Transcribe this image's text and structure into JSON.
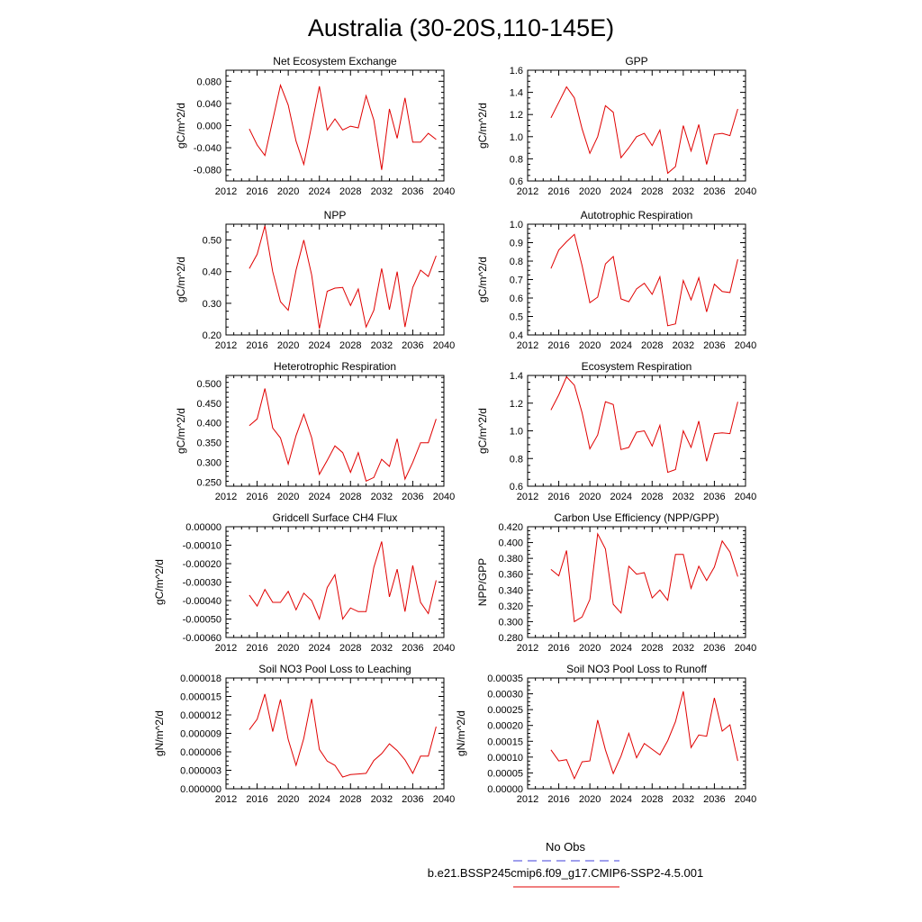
{
  "title": "Australia (30-20S,110-145E)",
  "legend": {
    "obs_label": "No Obs",
    "model_label": "b.e21.BSSP245cmip6.f09_g17.CMIP6-SSP2-4.5.001",
    "obs_color": "#3f3fd8",
    "model_color": "#e00000"
  },
  "chart_data": [
    {
      "type": "line",
      "title": "Net Ecosystem Exchange",
      "ylabel": "gC/m^2/d",
      "xlim": [
        2012,
        2040
      ],
      "ylim": [
        -0.1,
        0.1
      ],
      "xticks": [
        2012,
        2016,
        2020,
        2024,
        2028,
        2032,
        2036,
        2040
      ],
      "yticks": [
        -0.08,
        -0.04,
        0.0,
        0.04,
        0.08
      ],
      "ytick_labels": [
        "-0.080",
        "-0.040",
        "0.000",
        "0.040",
        "0.080"
      ],
      "x": [
        2015,
        2016,
        2017,
        2018,
        2019,
        2020,
        2021,
        2022,
        2023,
        2024,
        2025,
        2026,
        2027,
        2028,
        2029,
        2030,
        2031,
        2032,
        2033,
        2034,
        2035,
        2036,
        2037,
        2038,
        2039
      ],
      "values": [
        -0.006,
        -0.035,
        -0.054,
        0.01,
        0.073,
        0.037,
        -0.028,
        -0.07,
        0.0,
        0.071,
        -0.008,
        0.012,
        -0.008,
        -0.001,
        -0.004,
        0.054,
        0.01,
        -0.08,
        0.03,
        -0.023,
        0.05,
        -0.03,
        -0.03,
        -0.014,
        -0.025
      ]
    },
    {
      "type": "line",
      "title": "GPP",
      "ylabel": "gC/m^2/d",
      "xlim": [
        2012,
        2040
      ],
      "ylim": [
        0.6,
        1.6
      ],
      "xticks": [
        2012,
        2016,
        2020,
        2024,
        2028,
        2032,
        2036,
        2040
      ],
      "yticks": [
        0.6,
        0.8,
        1.0,
        1.2,
        1.4,
        1.6
      ],
      "ytick_labels": [
        "0.6",
        "0.8",
        "1.0",
        "1.2",
        "1.4",
        "1.6"
      ],
      "x": [
        2015,
        2016,
        2017,
        2018,
        2019,
        2020,
        2021,
        2022,
        2023,
        2024,
        2025,
        2026,
        2027,
        2028,
        2029,
        2030,
        2031,
        2032,
        2033,
        2034,
        2035,
        2036,
        2037,
        2038,
        2039
      ],
      "values": [
        1.17,
        1.31,
        1.45,
        1.35,
        1.07,
        0.85,
        1.0,
        1.28,
        1.22,
        0.81,
        0.9,
        1.0,
        1.03,
        0.92,
        1.06,
        0.67,
        0.73,
        1.1,
        0.87,
        1.11,
        0.75,
        1.02,
        1.03,
        1.01,
        1.25
      ]
    },
    {
      "type": "line",
      "title": "NPP",
      "ylabel": "gC/m^2/d",
      "xlim": [
        2012,
        2040
      ],
      "ylim": [
        0.2,
        0.55
      ],
      "xticks": [
        2012,
        2016,
        2020,
        2024,
        2028,
        2032,
        2036,
        2040
      ],
      "yticks": [
        0.2,
        0.3,
        0.4,
        0.5
      ],
      "ytick_labels": [
        "0.20",
        "0.30",
        "0.40",
        "0.50"
      ],
      "x": [
        2015,
        2016,
        2017,
        2018,
        2019,
        2020,
        2021,
        2022,
        2023,
        2024,
        2025,
        2026,
        2027,
        2028,
        2029,
        2030,
        2031,
        2032,
        2033,
        2034,
        2035,
        2036,
        2037,
        2038,
        2039
      ],
      "values": [
        0.41,
        0.455,
        0.545,
        0.4,
        0.305,
        0.278,
        0.405,
        0.5,
        0.39,
        0.22,
        0.338,
        0.348,
        0.35,
        0.293,
        0.345,
        0.225,
        0.278,
        0.41,
        0.28,
        0.4,
        0.225,
        0.35,
        0.405,
        0.385,
        0.45
      ]
    },
    {
      "type": "line",
      "title": "Autotrophic Respiration",
      "ylabel": "gC/m^2/d",
      "xlim": [
        2012,
        2040
      ],
      "ylim": [
        0.4,
        1.0
      ],
      "xticks": [
        2012,
        2016,
        2020,
        2024,
        2028,
        2032,
        2036,
        2040
      ],
      "yticks": [
        0.4,
        0.5,
        0.6,
        0.7,
        0.8,
        0.9,
        1.0
      ],
      "ytick_labels": [
        "0.4",
        "0.5",
        "0.6",
        "0.7",
        "0.8",
        "0.9",
        "1.0"
      ],
      "x": [
        2015,
        2016,
        2017,
        2018,
        2019,
        2020,
        2021,
        2022,
        2023,
        2024,
        2025,
        2026,
        2027,
        2028,
        2029,
        2030,
        2031,
        2032,
        2033,
        2034,
        2035,
        2036,
        2037,
        2038,
        2039
      ],
      "values": [
        0.76,
        0.86,
        0.905,
        0.945,
        0.775,
        0.575,
        0.605,
        0.785,
        0.825,
        0.595,
        0.58,
        0.65,
        0.68,
        0.62,
        0.715,
        0.45,
        0.46,
        0.695,
        0.59,
        0.71,
        0.525,
        0.675,
        0.635,
        0.63,
        0.81
      ]
    },
    {
      "type": "line",
      "title": "Heterotrophic Respiration",
      "ylabel": "gC/m^2/d",
      "xlim": [
        2012,
        2040
      ],
      "ylim": [
        0.24,
        0.52
      ],
      "xticks": [
        2012,
        2016,
        2020,
        2024,
        2028,
        2032,
        2036,
        2040
      ],
      "yticks": [
        0.25,
        0.3,
        0.35,
        0.4,
        0.45,
        0.5
      ],
      "ytick_labels": [
        "0.250",
        "0.300",
        "0.350",
        "0.400",
        "0.450",
        "0.500"
      ],
      "x": [
        2015,
        2016,
        2017,
        2018,
        2019,
        2020,
        2021,
        2022,
        2023,
        2024,
        2025,
        2026,
        2027,
        2028,
        2029,
        2030,
        2031,
        2032,
        2033,
        2034,
        2035,
        2036,
        2037,
        2038,
        2039
      ],
      "values": [
        0.393,
        0.41,
        0.487,
        0.387,
        0.362,
        0.296,
        0.368,
        0.422,
        0.363,
        0.27,
        0.305,
        0.342,
        0.325,
        0.275,
        0.325,
        0.253,
        0.262,
        0.308,
        0.29,
        0.36,
        0.258,
        0.3,
        0.35,
        0.35,
        0.41
      ]
    },
    {
      "type": "line",
      "title": "Ecosystem Respiration",
      "ylabel": "gC/m^2/d",
      "xlim": [
        2012,
        2040
      ],
      "ylim": [
        0.6,
        1.4
      ],
      "xticks": [
        2012,
        2016,
        2020,
        2024,
        2028,
        2032,
        2036,
        2040
      ],
      "yticks": [
        0.6,
        0.8,
        1.0,
        1.2,
        1.4
      ],
      "ytick_labels": [
        "0.6",
        "0.8",
        "1.0",
        "1.2",
        "1.4"
      ],
      "x": [
        2015,
        2016,
        2017,
        2018,
        2019,
        2020,
        2021,
        2022,
        2023,
        2024,
        2025,
        2026,
        2027,
        2028,
        2029,
        2030,
        2031,
        2032,
        2033,
        2034,
        2035,
        2036,
        2037,
        2038,
        2039
      ],
      "values": [
        1.15,
        1.26,
        1.39,
        1.33,
        1.13,
        0.87,
        0.97,
        1.21,
        1.19,
        0.865,
        0.88,
        0.99,
        1.0,
        0.89,
        1.04,
        0.7,
        0.72,
        1.0,
        0.88,
        1.07,
        0.78,
        0.98,
        0.985,
        0.98,
        1.21
      ]
    },
    {
      "type": "line",
      "title": "Gridcell Surface CH4 Flux",
      "ylabel": "gC/m^2/d",
      "xlim": [
        2012,
        2040
      ],
      "ylim": [
        -0.0006,
        0.0
      ],
      "xticks": [
        2012,
        2016,
        2020,
        2024,
        2028,
        2032,
        2036,
        2040
      ],
      "yticks": [
        -0.0006,
        -0.0005,
        -0.0004,
        -0.0003,
        -0.0002,
        -0.0001,
        0.0
      ],
      "ytick_labels": [
        "-0.00060",
        "-0.00050",
        "-0.00040",
        "-0.00030",
        "-0.00020",
        "-0.00010",
        "0.00000"
      ],
      "x": [
        2015,
        2016,
        2017,
        2018,
        2019,
        2020,
        2021,
        2022,
        2023,
        2024,
        2025,
        2026,
        2027,
        2028,
        2029,
        2030,
        2031,
        2032,
        2033,
        2034,
        2035,
        2036,
        2037,
        2038,
        2039
      ],
      "values": [
        -0.00037,
        -0.00043,
        -0.00034,
        -0.00041,
        -0.00041,
        -0.00035,
        -0.00045,
        -0.00036,
        -0.0004,
        -0.0005,
        -0.00033,
        -0.00026,
        -0.0005,
        -0.00044,
        -0.00046,
        -0.00046,
        -0.00022,
        -8e-05,
        -0.00038,
        -0.00023,
        -0.00046,
        -0.00021,
        -0.00041,
        -0.00047,
        -0.00029
      ]
    },
    {
      "type": "line",
      "title": "Carbon Use Efficiency (NPP/GPP)",
      "ylabel": "NPP/GPP",
      "xlim": [
        2012,
        2040
      ],
      "ylim": [
        0.28,
        0.42
      ],
      "xticks": [
        2012,
        2016,
        2020,
        2024,
        2028,
        2032,
        2036,
        2040
      ],
      "yticks": [
        0.28,
        0.3,
        0.32,
        0.34,
        0.36,
        0.38,
        0.4,
        0.42
      ],
      "ytick_labels": [
        "0.280",
        "0.300",
        "0.320",
        "0.340",
        "0.360",
        "0.380",
        "0.400",
        "0.420"
      ],
      "x": [
        2015,
        2016,
        2017,
        2018,
        2019,
        2020,
        2021,
        2022,
        2023,
        2024,
        2025,
        2026,
        2027,
        2028,
        2029,
        2030,
        2031,
        2032,
        2033,
        2034,
        2035,
        2036,
        2037,
        2038,
        2039
      ],
      "values": [
        0.366,
        0.358,
        0.39,
        0.3,
        0.306,
        0.328,
        0.411,
        0.392,
        0.322,
        0.311,
        0.37,
        0.36,
        0.362,
        0.33,
        0.34,
        0.327,
        0.385,
        0.385,
        0.342,
        0.37,
        0.352,
        0.369,
        0.402,
        0.388,
        0.357
      ]
    },
    {
      "type": "line",
      "title": "Soil NO3 Pool Loss to Leaching",
      "ylabel": "gN/m^2/d",
      "xlim": [
        2012,
        2040
      ],
      "ylim": [
        0.0,
        1.8e-05
      ],
      "xticks": [
        2012,
        2016,
        2020,
        2024,
        2028,
        2032,
        2036,
        2040
      ],
      "yticks": [
        0.0,
        3e-06,
        6e-06,
        9e-06,
        1.2e-05,
        1.5e-05,
        1.8e-05
      ],
      "ytick_labels": [
        "0.000000",
        "0.000003",
        "0.000006",
        "0.000009",
        "0.000012",
        "0.000015",
        "0.000018"
      ],
      "x": [
        2015,
        2016,
        2017,
        2018,
        2019,
        2020,
        2021,
        2022,
        2023,
        2024,
        2025,
        2026,
        2027,
        2028,
        2029,
        2030,
        2031,
        2032,
        2033,
        2034,
        2035,
        2036,
        2037,
        2038,
        2039
      ],
      "values": [
        9.6e-06,
        1.13e-05,
        1.54e-05,
        9.3e-06,
        1.45e-05,
        8e-06,
        3.8e-06,
        8.2e-06,
        1.46e-05,
        6.4e-06,
        4.5e-06,
        3.8e-06,
        1.9e-06,
        2.3e-06,
        2.4e-06,
        2.5e-06,
        4.6e-06,
        5.7e-06,
        7.3e-06,
        6.2e-06,
        4.7e-06,
        2.5e-06,
        5.3e-06,
        5.3e-06,
        1.01e-05
      ]
    },
    {
      "type": "line",
      "title": "Soil NO3 Pool Loss to Runoff",
      "ylabel": "gN/m^2/d",
      "xlim": [
        2012,
        2040
      ],
      "ylim": [
        0.0,
        0.00035
      ],
      "xticks": [
        2012,
        2016,
        2020,
        2024,
        2028,
        2032,
        2036,
        2040
      ],
      "yticks": [
        0.0,
        5e-05,
        0.0001,
        0.00015,
        0.0002,
        0.00025,
        0.0003,
        0.00035
      ],
      "ytick_labels": [
        "0.00000",
        "0.00005",
        "0.00010",
        "0.00015",
        "0.00020",
        "0.00025",
        "0.00030",
        "0.00035"
      ],
      "x": [
        2015,
        2016,
        2017,
        2018,
        2019,
        2020,
        2021,
        2022,
        2023,
        2024,
        2025,
        2026,
        2027,
        2028,
        2029,
        2030,
        2031,
        2032,
        2033,
        2034,
        2035,
        2036,
        2037,
        2038,
        2039
      ],
      "values": [
        0.000123,
        8.8e-05,
        9.2e-05,
        3.2e-05,
        8.5e-05,
        8.8e-05,
        0.000217,
        0.000123,
        4.8e-05,
        0.000103,
        0.000175,
        9.8e-05,
        0.000143,
        0.000125,
        0.000107,
        0.000152,
        0.000212,
        0.000308,
        0.00013,
        0.00017,
        0.000166,
        0.000287,
        0.000182,
        0.000202,
        8.8e-05
      ]
    }
  ]
}
